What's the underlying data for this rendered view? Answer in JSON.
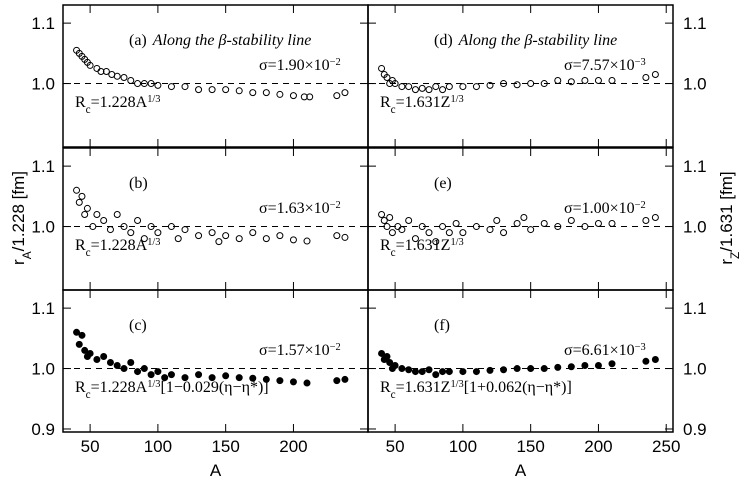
{
  "chart_data": [
    {
      "type": "scatter",
      "label": "(a)",
      "note": "Along the β-stability line",
      "marker": "open",
      "color": "#000000",
      "sigma": [
        [
          "σ=1.90×10",
          "base"
        ],
        [
          "−2",
          "sup"
        ]
      ],
      "formula": [
        [
          "R",
          "base"
        ],
        [
          "c",
          "sub"
        ],
        [
          "=1.228A",
          "base"
        ],
        [
          "1/3",
          "sup"
        ]
      ],
      "x": [
        40,
        42,
        44,
        46,
        48,
        50,
        55,
        58,
        62,
        66,
        70,
        75,
        80,
        85,
        90,
        95,
        100,
        110,
        120,
        130,
        140,
        150,
        160,
        170,
        180,
        190,
        200,
        208,
        212,
        232,
        238
      ],
      "values": [
        1.055,
        1.05,
        1.045,
        1.04,
        1.035,
        1.03,
        1.025,
        1.02,
        1.02,
        1.015,
        1.012,
        1.01,
        1.005,
        1.0,
        1.0,
        1.0,
        0.997,
        0.995,
        0.995,
        0.99,
        0.99,
        0.99,
        0.988,
        0.985,
        0.985,
        0.982,
        0.98,
        0.978,
        0.978,
        0.98,
        0.985
      ],
      "xlim": [
        30,
        255
      ],
      "ylim": [
        0.895,
        1.13
      ],
      "xticks": [
        50,
        100,
        150,
        200
      ],
      "yticks": [
        {
          "value": 1,
          "label": "1.0"
        },
        1.1
      ],
      "hline": 1
    },
    {
      "type": "scatter",
      "label": "(b)",
      "marker": "open",
      "color": "#000000",
      "sigma": [
        [
          "σ=1.63×10",
          "base"
        ],
        [
          "−2",
          "sup"
        ]
      ],
      "formula": [
        [
          "R",
          "base"
        ],
        [
          "c",
          "sub"
        ],
        [
          "=1.228A",
          "base"
        ],
        [
          "1/3",
          "sup"
        ]
      ],
      "x": [
        40,
        42,
        44,
        46,
        48,
        52,
        55,
        60,
        65,
        70,
        75,
        80,
        85,
        90,
        95,
        100,
        110,
        115,
        120,
        130,
        140,
        145,
        150,
        160,
        170,
        180,
        190,
        200,
        210,
        232,
        238
      ],
      "values": [
        1.06,
        1.04,
        1.05,
        1.02,
        1.03,
        1.0,
        1.02,
        1.01,
        0.995,
        1.02,
        1.0,
        0.99,
        1.01,
        0.98,
        1.0,
        0.99,
        1.0,
        0.98,
        0.995,
        0.985,
        0.99,
        0.975,
        0.985,
        0.98,
        0.99,
        0.98,
        0.985,
        0.978,
        0.976,
        0.985,
        0.982
      ],
      "xlim": [
        30,
        255
      ],
      "ylim": [
        0.895,
        1.13
      ],
      "xticks": [
        50,
        100,
        150,
        200
      ],
      "yticks": [
        {
          "value": 1,
          "label": "1.0"
        },
        1.1
      ],
      "hline": 1
    },
    {
      "type": "scatter",
      "label": "(c)",
      "marker": "filled",
      "color": "#000000",
      "sigma": [
        [
          "σ=1.57×10",
          "base"
        ],
        [
          "−2",
          "sup"
        ]
      ],
      "formula": [
        [
          "R",
          "base"
        ],
        [
          "c",
          "sub"
        ],
        [
          "=1.228A",
          "base"
        ],
        [
          "1/3",
          "sup"
        ],
        [
          "[1−0.029(η−η*)]",
          "base"
        ]
      ],
      "x": [
        40,
        42,
        44,
        46,
        48,
        50,
        55,
        60,
        65,
        70,
        75,
        80,
        85,
        90,
        95,
        100,
        105,
        110,
        120,
        130,
        140,
        150,
        160,
        170,
        180,
        190,
        200,
        210,
        232,
        238
      ],
      "values": [
        1.06,
        1.04,
        1.055,
        1.03,
        1.02,
        1.025,
        1.015,
        1.02,
        1.01,
        1.005,
        1.0,
        1.01,
        0.995,
        1.0,
        0.99,
        0.995,
        0.985,
        0.99,
        0.985,
        0.99,
        0.985,
        0.988,
        0.985,
        0.984,
        0.982,
        0.98,
        0.978,
        0.976,
        0.98,
        0.982
      ],
      "xlim": [
        30,
        255
      ],
      "ylim": [
        0.895,
        1.13
      ],
      "xticks": [
        50,
        100,
        150,
        200
      ],
      "yticks": [
        0.9,
        {
          "value": 1,
          "label": "1.0"
        },
        1.1
      ],
      "hline": 1,
      "xlabel": "A"
    },
    {
      "type": "scatter",
      "label": "(d)",
      "note": "Along the β-stability line",
      "marker": "open",
      "color": "#000000",
      "sigma": [
        [
          "σ=7.57×10",
          "base"
        ],
        [
          "−3",
          "sup"
        ]
      ],
      "formula": [
        [
          "R",
          "base"
        ],
        [
          "c",
          "sub"
        ],
        [
          "=1.631Z",
          "base"
        ],
        [
          "1/3",
          "sup"
        ]
      ],
      "x": [
        40,
        42,
        44,
        46,
        48,
        50,
        55,
        60,
        65,
        70,
        75,
        80,
        85,
        90,
        100,
        110,
        120,
        130,
        140,
        150,
        160,
        170,
        180,
        190,
        200,
        210,
        235,
        242
      ],
      "values": [
        1.025,
        1.015,
        1.01,
        1.0,
        1.005,
        1.0,
        0.995,
        0.995,
        0.99,
        0.992,
        0.99,
        0.995,
        0.99,
        0.995,
        0.995,
        0.995,
        0.997,
        1.0,
        0.998,
        1.0,
        1.0,
        1.005,
        1.003,
        1.005,
        1.005,
        1.005,
        1.01,
        1.015
      ],
      "xlim": [
        30,
        255
      ],
      "ylim": [
        0.895,
        1.13
      ],
      "xticks": [
        50,
        100,
        150,
        200,
        250
      ],
      "yticks": [
        {
          "value": 1,
          "label": "1.0"
        },
        1.1
      ],
      "hline": 1
    },
    {
      "type": "scatter",
      "label": "(e)",
      "marker": "open",
      "color": "#000000",
      "sigma": [
        [
          "σ=1.00×10",
          "base"
        ],
        [
          "−2",
          "sup"
        ]
      ],
      "formula": [
        [
          "R",
          "base"
        ],
        [
          "c",
          "sub"
        ],
        [
          "=1.631Z",
          "base"
        ],
        [
          "1/3",
          "sup"
        ]
      ],
      "x": [
        40,
        42,
        44,
        46,
        48,
        52,
        55,
        60,
        65,
        70,
        75,
        80,
        85,
        90,
        95,
        100,
        110,
        120,
        125,
        130,
        140,
        145,
        150,
        160,
        170,
        180,
        190,
        200,
        210,
        235,
        242
      ],
      "values": [
        1.02,
        1.01,
        1.0,
        1.015,
        0.99,
        1.0,
        0.995,
        1.01,
        0.98,
        1.0,
        0.99,
        0.975,
        1.0,
        0.99,
        1.005,
        0.99,
        1.0,
        0.995,
        1.01,
        0.99,
        1.005,
        1.015,
        0.995,
        1.005,
        1.0,
        1.01,
        1.0,
        1.005,
        1.005,
        1.01,
        1.015
      ],
      "xlim": [
        30,
        255
      ],
      "ylim": [
        0.895,
        1.13
      ],
      "xticks": [
        50,
        100,
        150,
        200,
        250
      ],
      "yticks": [
        {
          "value": 1,
          "label": "1.0"
        },
        1.1
      ],
      "hline": 1
    },
    {
      "type": "scatter",
      "label": "(f)",
      "marker": "filled",
      "color": "#000000",
      "sigma": [
        [
          "σ=6.61×10",
          "base"
        ],
        [
          "−3",
          "sup"
        ]
      ],
      "formula": [
        [
          "R",
          "base"
        ],
        [
          "c",
          "sub"
        ],
        [
          "=1.631Z",
          "base"
        ],
        [
          "1/3",
          "sup"
        ],
        [
          "[1+0.062(η−η*)]",
          "base"
        ]
      ],
      "x": [
        40,
        42,
        44,
        46,
        48,
        50,
        55,
        60,
        65,
        70,
        75,
        80,
        85,
        90,
        100,
        110,
        120,
        130,
        140,
        150,
        160,
        170,
        180,
        190,
        200,
        210,
        235,
        242
      ],
      "values": [
        1.025,
        1.015,
        1.02,
        1.01,
        1.0,
        1.005,
        1.0,
        0.998,
        0.995,
        0.995,
        0.998,
        0.99,
        0.995,
        0.995,
        0.995,
        0.995,
        0.997,
        0.998,
        1.0,
        1.0,
        1.0,
        1.002,
        1.003,
        1.005,
        1.005,
        1.008,
        1.012,
        1.015
      ],
      "xlim": [
        30,
        255
      ],
      "ylim": [
        0.895,
        1.13
      ],
      "xticks": [
        50,
        100,
        150,
        200,
        250
      ],
      "yticks": [
        0.9,
        {
          "value": 1,
          "label": "1.0"
        },
        1.1
      ],
      "hline": 1,
      "xlabel": "A"
    }
  ],
  "left_ylabel": [
    [
      "r",
      "base"
    ],
    [
      "A",
      "sub"
    ],
    [
      "/1.228  [fm]",
      "base"
    ]
  ],
  "right_ylabel": [
    [
      "r",
      "base"
    ],
    [
      "Z",
      "sub"
    ],
    [
      "/1.631  [fm]",
      "base"
    ]
  ]
}
